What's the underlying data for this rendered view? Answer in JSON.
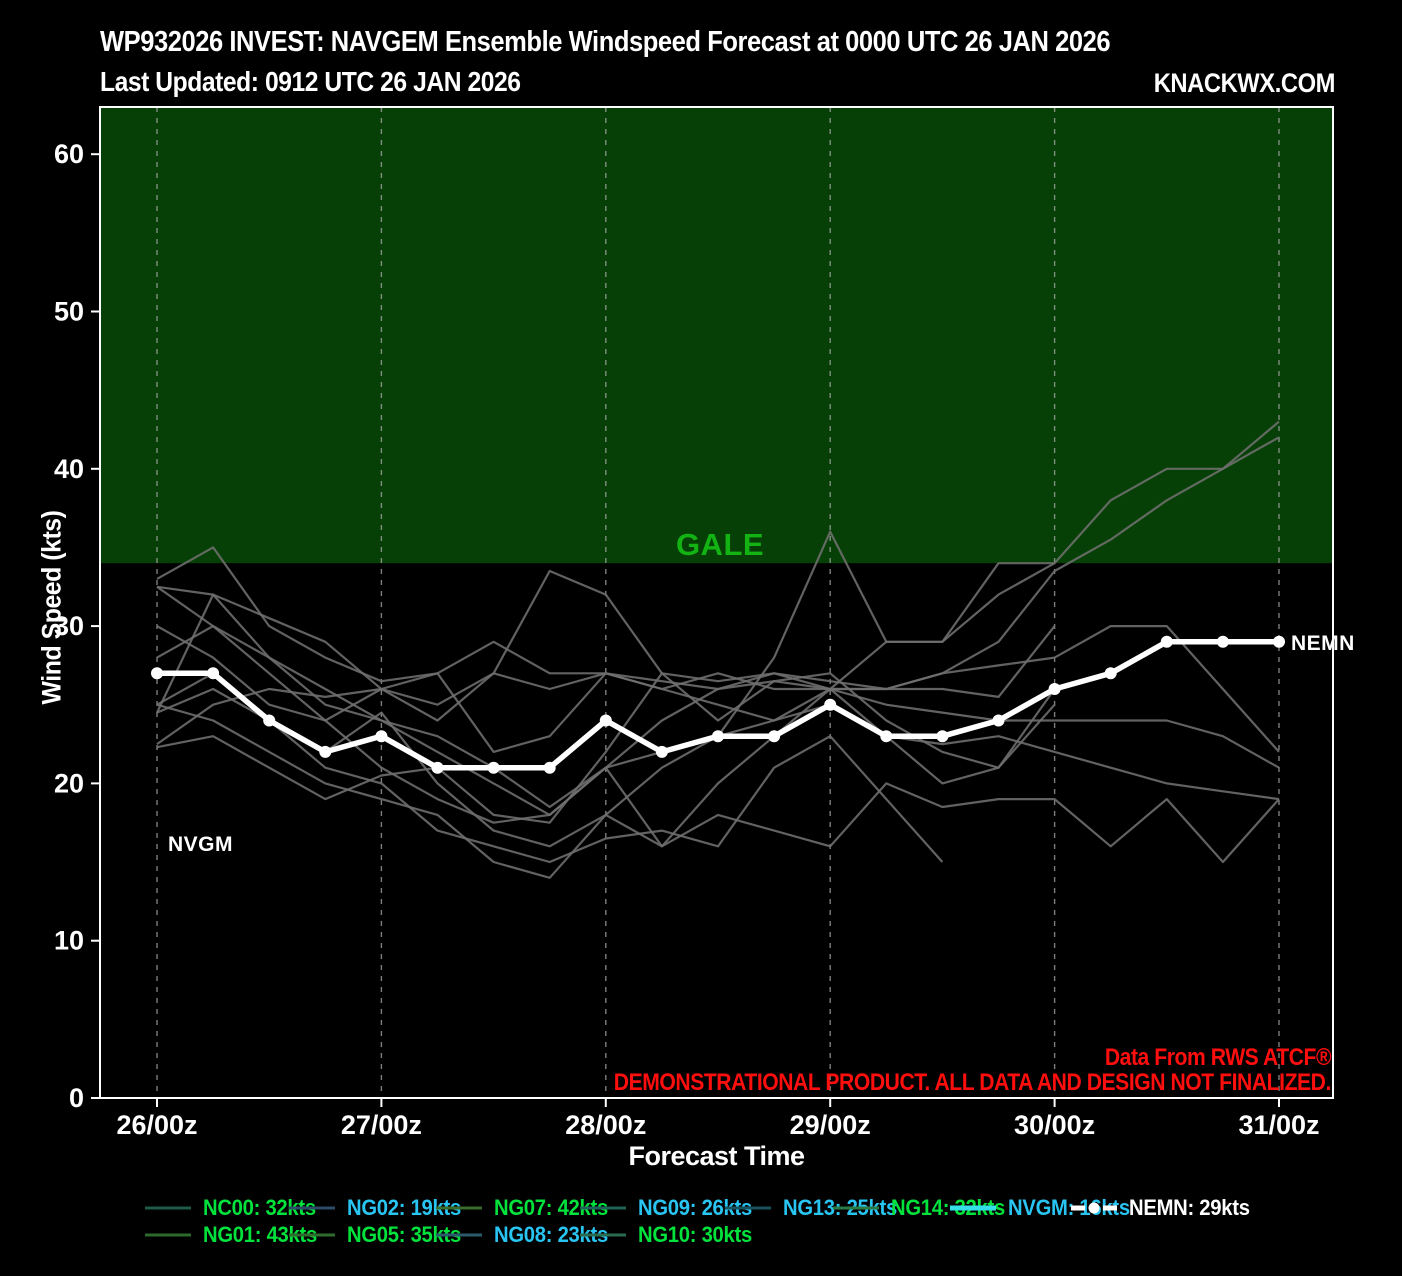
{
  "header": {
    "title": "WP932026 INVEST: NAVGEM Ensemble Windspeed Forecast at 0000 UTC 26 JAN 2026",
    "subtitle": "Last Updated: 0912 UTC 26 JAN 2026",
    "brand": "KNACKWX.COM"
  },
  "colors": {
    "background": "#000000",
    "gale_region": "#074007",
    "gale_text": "#12b312",
    "ensemble_line": "#6f6f6f",
    "mean_line": "#ffffff",
    "gridline": "#a8a8a8",
    "axis": "#ffffff",
    "tick_text": "#ffffff",
    "warning_text": "#ff0e0e",
    "legend_green": "#00e23c",
    "legend_cyan": "#29c5f2",
    "legend_white": "#ffffff"
  },
  "chart_data": {
    "type": "line",
    "title": "WP932026 INVEST: NAVGEM Ensemble Windspeed Forecast at 0000 UTC 26 JAN 2026",
    "xlabel": "Forecast Time",
    "ylabel": "Wind Speed (kts)",
    "ylim": [
      0,
      63
    ],
    "yticks": [
      0,
      10,
      20,
      30,
      40,
      50,
      60
    ],
    "x_tick_labels": [
      "26/00z",
      "27/00z",
      "28/00z",
      "29/00z",
      "30/00z",
      "31/00z"
    ],
    "times": [
      "26/00z",
      "26/06z",
      "26/12z",
      "26/18z",
      "27/00z",
      "27/06z",
      "27/12z",
      "27/18z",
      "28/00z",
      "28/06z",
      "28/12z",
      "28/18z",
      "29/00z",
      "29/06z",
      "29/12z",
      "29/18z",
      "30/00z",
      "30/06z",
      "30/12z",
      "30/18z",
      "31/00z"
    ],
    "grid": "vertical-dashed-daily",
    "gale_threshold": 34,
    "gale_label": "GALE",
    "nvgm_annotation": "NVGM",
    "nemn_annotation": "NEMN",
    "series_note": "ensemble member traces approximated from plot pixels, kts at 6-h steps, null = not drawn",
    "series": [
      {
        "name": "NC00",
        "values": [
          33,
          35,
          30,
          28,
          26.5,
          27,
          29,
          27,
          27,
          26.5,
          26,
          26.5,
          26,
          26,
          27,
          27.5,
          28,
          30,
          30,
          26,
          22
        ]
      },
      {
        "name": "NG01",
        "values": [
          25,
          24,
          22,
          20,
          19,
          18,
          15,
          14,
          18,
          21,
          23,
          28,
          36,
          29,
          29,
          34,
          34,
          38,
          40,
          40,
          43
        ]
      },
      {
        "name": "NG02",
        "values": [
          32.5,
          30,
          27,
          24,
          21,
          19,
          17.5,
          18,
          21,
          16,
          18,
          17,
          16,
          20,
          18.5,
          19,
          19,
          16,
          19,
          15,
          19
        ]
      },
      {
        "name": "NG05",
        "values": [
          22.5,
          25,
          26,
          25.5,
          26,
          27,
          22,
          23,
          27,
          26,
          25,
          24,
          26,
          25,
          24.5,
          24,
          24,
          24,
          24,
          23,
          21
        ]
      },
      {
        "name": "NG07",
        "values": [
          32.5,
          32,
          28,
          25,
          24,
          22,
          20,
          18,
          21,
          24,
          26,
          27,
          26,
          26,
          27,
          29,
          33.5,
          35.5,
          38,
          40,
          42
        ]
      },
      {
        "name": "NG08",
        "values": [
          25,
          27,
          24,
          22,
          24.5,
          20,
          17,
          16,
          18,
          16,
          20,
          23,
          26,
          23,
          22.5,
          23,
          22,
          21,
          20,
          19.5,
          19
        ]
      },
      {
        "name": "NG09",
        "values": [
          22.3,
          23,
          21,
          19,
          20.5,
          21,
          18,
          17.5,
          22,
          27,
          24,
          26.5,
          27,
          24,
          22,
          21,
          26,
          null,
          null,
          null,
          null
        ]
      },
      {
        "name": "NG10",
        "values": [
          24.5,
          32,
          30.5,
          29,
          26,
          25,
          27,
          33.5,
          32,
          27,
          26.5,
          27,
          26.5,
          26,
          26,
          25.5,
          30,
          null,
          null,
          null,
          null
        ]
      },
      {
        "name": "NG13",
        "values": [
          28,
          30,
          28,
          26,
          24,
          23,
          21,
          18.5,
          21,
          22,
          23,
          24,
          25,
          23,
          20,
          21,
          25,
          null,
          null,
          null,
          null
        ]
      },
      {
        "name": "NG14",
        "values": [
          30,
          28,
          25,
          24,
          26,
          24,
          27,
          26,
          27,
          26,
          27,
          26,
          26,
          29,
          29,
          32,
          34,
          null,
          null,
          null,
          null
        ]
      },
      {
        "name": "NVGM",
        "values": [
          24.5,
          26,
          24,
          21,
          20,
          17,
          16,
          15,
          16.5,
          17,
          16,
          21,
          23,
          19,
          15,
          null,
          null,
          null,
          null,
          null,
          null
        ]
      }
    ],
    "mean_series": {
      "name": "NEMN",
      "values": [
        27,
        27,
        24,
        22,
        23,
        21,
        21,
        21,
        24,
        22,
        23,
        23,
        25,
        23,
        23,
        24,
        26,
        27,
        29,
        29,
        29
      ]
    }
  },
  "legend": {
    "rows": [
      [
        {
          "id": "NC00",
          "label": "NC00: 32kts",
          "value_kts": 32,
          "label_color": "green",
          "swatch_color": "#1c5a49",
          "swatch": "line"
        },
        {
          "id": "NG02",
          "label": "NG02: 19kts",
          "value_kts": 19,
          "label_color": "cyan",
          "swatch_color": "#2d4a66",
          "swatch": "line"
        },
        {
          "id": "NG07",
          "label": "NG07: 42kts",
          "value_kts": 42,
          "label_color": "green",
          "swatch_color": "#3a6b2a",
          "swatch": "line"
        },
        {
          "id": "NG09",
          "label": "NG09: 26kts",
          "value_kts": 26,
          "label_color": "cyan",
          "swatch_color": "#1f6358",
          "swatch": "line"
        },
        {
          "id": "NG13",
          "label": "NG13: 25kts",
          "value_kts": 25,
          "label_color": "cyan",
          "swatch_color": "#19525f",
          "swatch": "line"
        },
        {
          "id": "NG14",
          "label": "NG14: 32kts",
          "value_kts": 32,
          "label_color": "green",
          "swatch_color": "#2a7a45",
          "swatch": "line"
        },
        {
          "id": "NVGM",
          "label": "NVGM: 16kts",
          "value_kts": 16,
          "label_color": "cyan",
          "swatch_color": "#35dfe8",
          "swatch": "thick-line"
        },
        {
          "id": "NEMN",
          "label": "NEMN: 29kts",
          "value_kts": 29,
          "label_color": "white",
          "swatch_color": "#ffffff",
          "swatch": "dash-dot"
        }
      ],
      [
        {
          "id": "NG01",
          "label": "NG01: 43kts",
          "value_kts": 43,
          "label_color": "green",
          "swatch_color": "#2d6a2d",
          "swatch": "line"
        },
        {
          "id": "NG05",
          "label": "NG05: 35kts",
          "value_kts": 35,
          "label_color": "green",
          "swatch_color": "#2f6b2f",
          "swatch": "line"
        },
        {
          "id": "NG08",
          "label": "NG08: 23kts",
          "value_kts": 23,
          "label_color": "cyan",
          "swatch_color": "#2a5a6b",
          "swatch": "line"
        },
        {
          "id": "NG10",
          "label": "NG10: 30kts",
          "value_kts": 30,
          "label_color": "green",
          "swatch_color": "#2a6b50",
          "swatch": "line"
        }
      ]
    ]
  },
  "footer": {
    "source": "Data From RWS ATCF®",
    "disclaimer": "DEMONSTRATIONAL PRODUCT. ALL DATA AND DESIGN NOT FINALIZED."
  }
}
